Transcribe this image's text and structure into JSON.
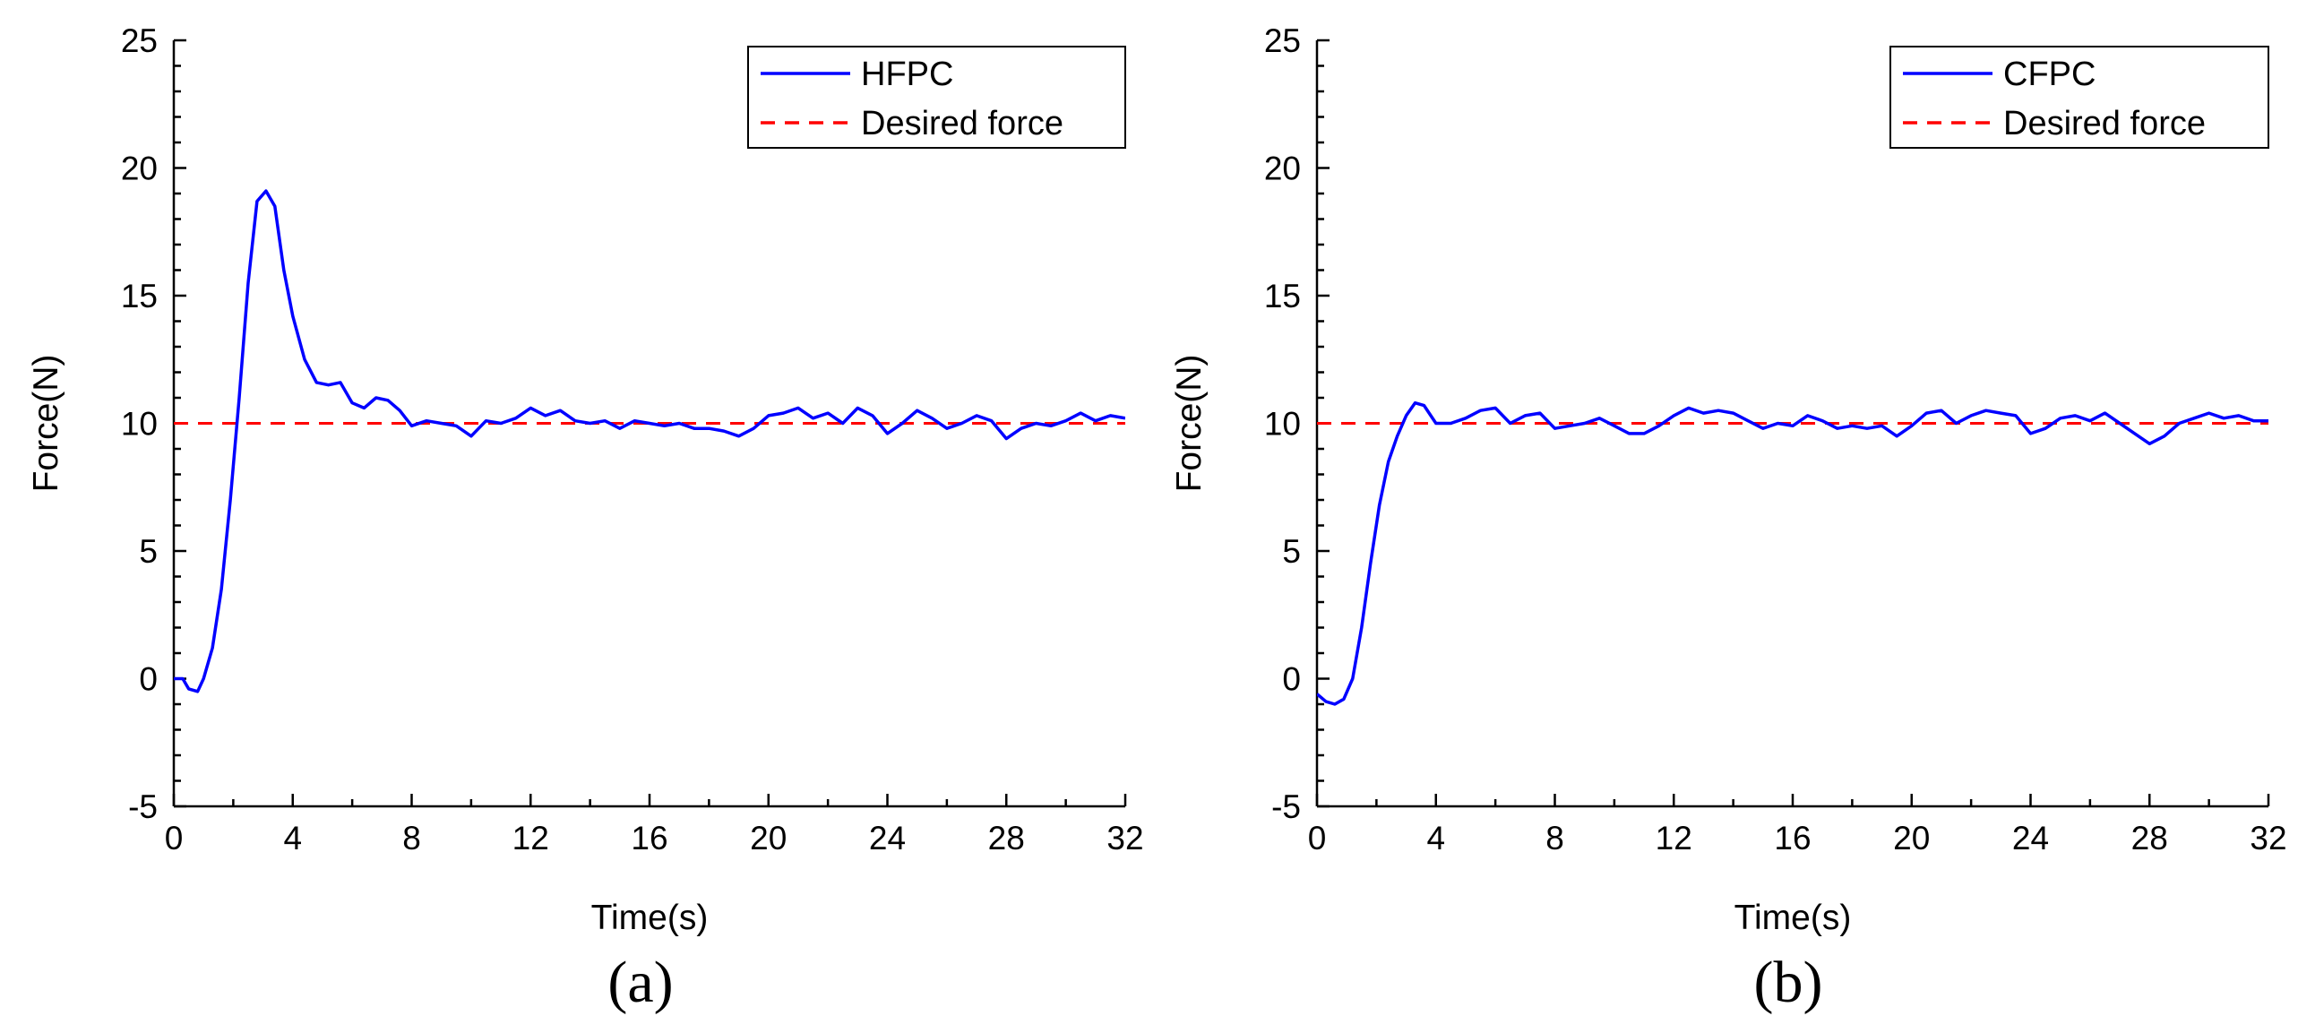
{
  "chart_data": [
    {
      "type": "line",
      "panel_label": "(a)",
      "xlabel": "Time(s)",
      "ylabel": "Force(N)",
      "xlim": [
        0,
        32
      ],
      "ylim": [
        -5,
        25
      ],
      "xticks": [
        0,
        4,
        8,
        12,
        16,
        20,
        24,
        28,
        32
      ],
      "yticks": [
        -5,
        0,
        5,
        10,
        15,
        20,
        25
      ],
      "legend": {
        "position": "top-right",
        "boxed": true
      },
      "series": [
        {
          "name": "HFPC",
          "style": "solid",
          "color": "#0000ff",
          "points": [
            [
              0,
              0
            ],
            [
              0.3,
              0
            ],
            [
              0.5,
              -0.4
            ],
            [
              0.8,
              -0.5
            ],
            [
              1.0,
              0
            ],
            [
              1.3,
              1.2
            ],
            [
              1.6,
              3.5
            ],
            [
              1.9,
              7
            ],
            [
              2.2,
              11
            ],
            [
              2.5,
              15.5
            ],
            [
              2.8,
              18.7
            ],
            [
              3.1,
              19.1
            ],
            [
              3.4,
              18.5
            ],
            [
              3.7,
              16
            ],
            [
              4.0,
              14.2
            ],
            [
              4.4,
              12.5
            ],
            [
              4.8,
              11.6
            ],
            [
              5.2,
              11.5
            ],
            [
              5.6,
              11.6
            ],
            [
              6.0,
              10.8
            ],
            [
              6.4,
              10.6
            ],
            [
              6.8,
              11
            ],
            [
              7.2,
              10.9
            ],
            [
              7.6,
              10.5
            ],
            [
              8.0,
              9.9
            ],
            [
              8.5,
              10.1
            ],
            [
              9.0,
              10
            ],
            [
              9.5,
              9.9
            ],
            [
              10.0,
              9.5
            ],
            [
              10.5,
              10.1
            ],
            [
              11.0,
              10
            ],
            [
              11.5,
              10.2
            ],
            [
              12.0,
              10.6
            ],
            [
              12.5,
              10.3
            ],
            [
              13.0,
              10.5
            ],
            [
              13.5,
              10.1
            ],
            [
              14.0,
              10
            ],
            [
              14.5,
              10.1
            ],
            [
              15.0,
              9.8
            ],
            [
              15.5,
              10.1
            ],
            [
              16.0,
              10
            ],
            [
              16.5,
              9.9
            ],
            [
              17.0,
              10
            ],
            [
              17.5,
              9.8
            ],
            [
              18.0,
              9.8
            ],
            [
              18.5,
              9.7
            ],
            [
              19.0,
              9.5
            ],
            [
              19.5,
              9.8
            ],
            [
              20.0,
              10.3
            ],
            [
              20.5,
              10.4
            ],
            [
              21.0,
              10.6
            ],
            [
              21.5,
              10.2
            ],
            [
              22.0,
              10.4
            ],
            [
              22.5,
              10
            ],
            [
              23.0,
              10.6
            ],
            [
              23.5,
              10.3
            ],
            [
              24.0,
              9.6
            ],
            [
              24.5,
              10
            ],
            [
              25.0,
              10.5
            ],
            [
              25.5,
              10.2
            ],
            [
              26.0,
              9.8
            ],
            [
              26.5,
              10
            ],
            [
              27.0,
              10.3
            ],
            [
              27.5,
              10.1
            ],
            [
              28.0,
              9.4
            ],
            [
              28.5,
              9.8
            ],
            [
              29.0,
              10
            ],
            [
              29.5,
              9.9
            ],
            [
              30.0,
              10.1
            ],
            [
              30.5,
              10.4
            ],
            [
              31.0,
              10.1
            ],
            [
              31.5,
              10.3
            ],
            [
              32.0,
              10.2
            ]
          ]
        },
        {
          "name": "Desired force",
          "style": "dashed",
          "color": "#ff0000",
          "points": [
            [
              0,
              10
            ],
            [
              32,
              10
            ]
          ]
        }
      ]
    },
    {
      "type": "line",
      "panel_label": "(b)",
      "xlabel": "Time(s)",
      "ylabel": "Force(N)",
      "xlim": [
        0,
        32
      ],
      "ylim": [
        -5,
        25
      ],
      "xticks": [
        0,
        4,
        8,
        12,
        16,
        20,
        24,
        28,
        32
      ],
      "yticks": [
        -5,
        0,
        5,
        10,
        15,
        20,
        25
      ],
      "legend": {
        "position": "top-right",
        "boxed": true
      },
      "series": [
        {
          "name": "CFPC",
          "style": "solid",
          "color": "#0000ff",
          "points": [
            [
              0,
              -0.6
            ],
            [
              0.3,
              -0.9
            ],
            [
              0.6,
              -1.0
            ],
            [
              0.9,
              -0.8
            ],
            [
              1.2,
              0
            ],
            [
              1.5,
              2
            ],
            [
              1.8,
              4.5
            ],
            [
              2.1,
              6.8
            ],
            [
              2.4,
              8.5
            ],
            [
              2.7,
              9.5
            ],
            [
              3.0,
              10.3
            ],
            [
              3.3,
              10.8
            ],
            [
              3.6,
              10.7
            ],
            [
              4.0,
              10
            ],
            [
              4.5,
              10
            ],
            [
              5.0,
              10.2
            ],
            [
              5.5,
              10.5
            ],
            [
              6.0,
              10.6
            ],
            [
              6.5,
              10
            ],
            [
              7.0,
              10.3
            ],
            [
              7.5,
              10.4
            ],
            [
              8.0,
              9.8
            ],
            [
              8.5,
              9.9
            ],
            [
              9.0,
              10
            ],
            [
              9.5,
              10.2
            ],
            [
              10.0,
              9.9
            ],
            [
              10.5,
              9.6
            ],
            [
              11.0,
              9.6
            ],
            [
              11.5,
              9.9
            ],
            [
              12.0,
              10.3
            ],
            [
              12.5,
              10.6
            ],
            [
              13.0,
              10.4
            ],
            [
              13.5,
              10.5
            ],
            [
              14.0,
              10.4
            ],
            [
              14.5,
              10.1
            ],
            [
              15.0,
              9.8
            ],
            [
              15.5,
              10
            ],
            [
              16.0,
              9.9
            ],
            [
              16.5,
              10.3
            ],
            [
              17.0,
              10.1
            ],
            [
              17.5,
              9.8
            ],
            [
              18.0,
              9.9
            ],
            [
              18.5,
              9.8
            ],
            [
              19.0,
              9.9
            ],
            [
              19.5,
              9.5
            ],
            [
              20.0,
              9.9
            ],
            [
              20.5,
              10.4
            ],
            [
              21.0,
              10.5
            ],
            [
              21.5,
              10
            ],
            [
              22.0,
              10.3
            ],
            [
              22.5,
              10.5
            ],
            [
              23.0,
              10.4
            ],
            [
              23.5,
              10.3
            ],
            [
              24.0,
              9.6
            ],
            [
              24.5,
              9.8
            ],
            [
              25.0,
              10.2
            ],
            [
              25.5,
              10.3
            ],
            [
              26.0,
              10.1
            ],
            [
              26.5,
              10.4
            ],
            [
              27.0,
              10
            ],
            [
              27.5,
              9.6
            ],
            [
              28.0,
              9.2
            ],
            [
              28.5,
              9.5
            ],
            [
              29.0,
              10
            ],
            [
              29.5,
              10.2
            ],
            [
              30.0,
              10.4
            ],
            [
              30.5,
              10.2
            ],
            [
              31.0,
              10.3
            ],
            [
              31.5,
              10.1
            ],
            [
              32.0,
              10.1
            ]
          ]
        },
        {
          "name": "Desired force",
          "style": "dashed",
          "color": "#ff0000",
          "points": [
            [
              0,
              10
            ],
            [
              32,
              10
            ]
          ]
        }
      ]
    }
  ]
}
